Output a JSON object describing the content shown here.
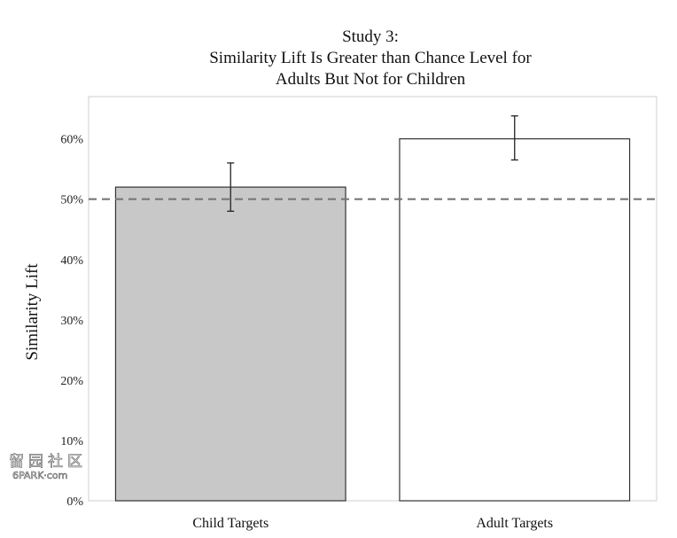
{
  "chart_data": {
    "type": "bar",
    "title": [
      "Study 3:",
      "Similarity Lift Is Greater than Chance Level for",
      "Adults But Not for Children"
    ],
    "ylabel": "Similarity Lift",
    "xlabel": "",
    "categories": [
      "Child Targets",
      "Adult Targets"
    ],
    "values": [
      52,
      60
    ],
    "error_low": [
      48,
      56.5
    ],
    "error_high": [
      56,
      63.8
    ],
    "bar_fill_colors": [
      "#c8c8c8",
      "#ffffff"
    ],
    "bar_stroke_color": "#333333",
    "ylim": [
      0,
      67
    ],
    "yticks": [
      0,
      10,
      20,
      30,
      40,
      50,
      60
    ],
    "ytick_labels": [
      "0%",
      "10%",
      "20%",
      "30%",
      "40%",
      "50%",
      "60%"
    ],
    "reference_line": {
      "value": 50,
      "style": "dashed",
      "color": "#777777"
    },
    "grid": false,
    "legend": "none"
  },
  "watermark": {
    "glyphs": "留园社区",
    "text": "6PARK·com"
  }
}
